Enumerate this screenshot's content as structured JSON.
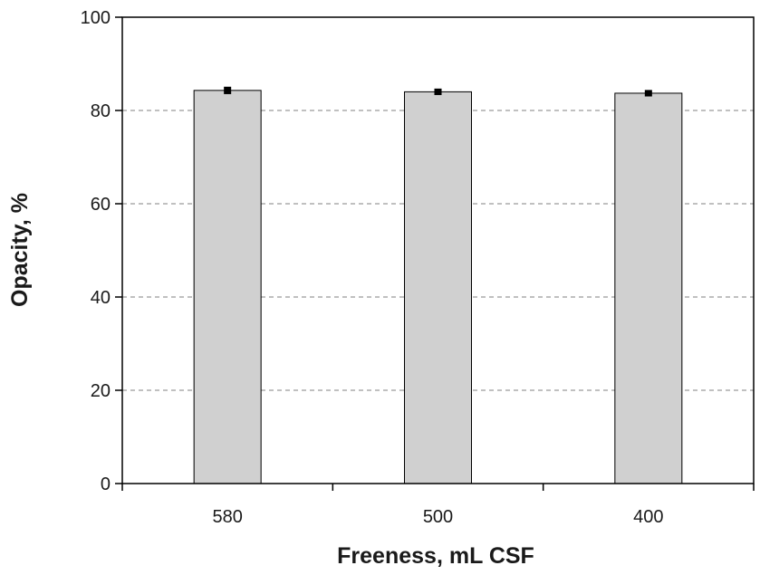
{
  "chart_data": {
    "type": "bar",
    "title": "",
    "xlabel": "Freeness, mL CSF",
    "ylabel": "Opacity, %",
    "categories": [
      "580",
      "500",
      "400"
    ],
    "values": [
      84.3,
      84.0,
      83.7
    ],
    "error": [
      0.6,
      0.5,
      0.5
    ],
    "ylim": [
      0,
      100
    ],
    "yticks": [
      0,
      20,
      40,
      60,
      80,
      100
    ],
    "ytick_labels": [
      "0",
      "20",
      "40",
      "60",
      "80",
      "100"
    ],
    "grid": "horizontal dashed at 20, 40, 60, 80",
    "colors": {
      "bar_fill": "#d0d0d0",
      "bar_stroke": "#000000",
      "grid": "#808080",
      "error_bar": "#000000"
    }
  }
}
